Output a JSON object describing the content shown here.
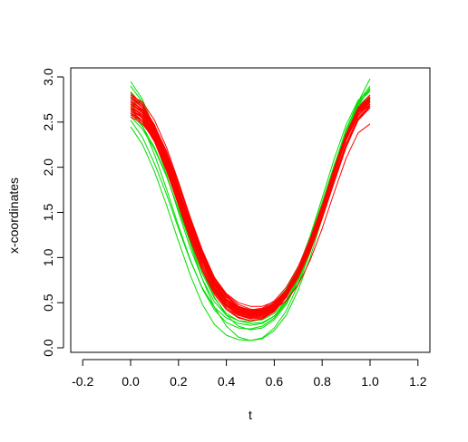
{
  "chart_data": {
    "type": "line",
    "title": "",
    "xlabel": "t",
    "ylabel": "x-coordinates",
    "xlim": [
      -0.25,
      1.25
    ],
    "ylim": [
      -0.05,
      3.1
    ],
    "x_ticks": [
      -0.2,
      0.0,
      0.2,
      0.4,
      0.6,
      0.8,
      1.0,
      1.2
    ],
    "x_tick_labels": [
      "-0.2",
      "0.0",
      "0.2",
      "0.4",
      "0.6",
      "0.8",
      "1.0",
      "1.2"
    ],
    "y_ticks": [
      0.0,
      0.5,
      1.0,
      1.5,
      2.0,
      2.5,
      3.0
    ],
    "y_tick_labels": [
      "0.0",
      "0.5",
      "1.0",
      "1.5",
      "2.0",
      "2.5",
      "3.0"
    ],
    "grid": false,
    "legend": "none",
    "colors": {
      "green": "#00dd00",
      "red": "#ff0000"
    },
    "x": [
      0.0,
      0.05,
      0.1,
      0.15,
      0.2,
      0.25,
      0.3,
      0.35,
      0.4,
      0.45,
      0.5,
      0.55,
      0.6,
      0.65,
      0.7,
      0.75,
      0.8,
      0.85,
      0.9,
      0.95,
      1.0
    ],
    "series": [
      {
        "color": "#00dd00",
        "values": [
          2.95,
          2.75,
          2.42,
          2.02,
          1.58,
          1.15,
          0.76,
          0.45,
          0.24,
          0.12,
          0.08,
          0.11,
          0.22,
          0.41,
          0.7,
          1.06,
          1.47,
          1.92,
          2.35,
          2.72,
          2.98
        ]
      },
      {
        "color": "#00dd00",
        "values": [
          2.9,
          2.72,
          2.41,
          2.03,
          1.62,
          1.21,
          0.85,
          0.56,
          0.36,
          0.24,
          0.2,
          0.22,
          0.31,
          0.48,
          0.74,
          1.08,
          1.48,
          1.92,
          2.34,
          2.68,
          2.88
        ]
      },
      {
        "color": "#00dd00",
        "values": [
          2.84,
          2.68,
          2.4,
          2.04,
          1.64,
          1.25,
          0.9,
          0.62,
          0.44,
          0.34,
          0.3,
          0.31,
          0.38,
          0.53,
          0.77,
          1.1,
          1.5,
          1.94,
          2.36,
          2.7,
          2.86
        ]
      },
      {
        "color": "#00dd00",
        "values": [
          2.6,
          2.45,
          2.22,
          1.9,
          1.53,
          1.16,
          0.82,
          0.55,
          0.38,
          0.3,
          0.27,
          0.28,
          0.35,
          0.5,
          0.74,
          1.08,
          1.49,
          1.94,
          2.36,
          2.68,
          2.8
        ]
      },
      {
        "color": "#00dd00",
        "values": [
          2.52,
          2.33,
          2.04,
          1.7,
          1.32,
          0.96,
          0.66,
          0.45,
          0.33,
          0.27,
          0.25,
          0.27,
          0.35,
          0.52,
          0.78,
          1.14,
          1.56,
          2.01,
          2.42,
          2.72,
          2.84
        ]
      },
      {
        "color": "#00dd00",
        "values": [
          2.45,
          2.25,
          1.95,
          1.58,
          1.18,
          0.8,
          0.48,
          0.26,
          0.14,
          0.09,
          0.08,
          0.1,
          0.19,
          0.36,
          0.64,
          1.0,
          1.44,
          1.9,
          2.32,
          2.62,
          2.75
        ]
      },
      {
        "color": "#00dd00",
        "values": [
          2.7,
          2.55,
          2.3,
          1.97,
          1.6,
          1.23,
          0.9,
          0.65,
          0.49,
          0.42,
          0.4,
          0.42,
          0.5,
          0.65,
          0.89,
          1.22,
          1.61,
          2.02,
          2.4,
          2.66,
          2.74
        ]
      },
      {
        "color": "#00dd00",
        "values": [
          2.78,
          2.6,
          2.3,
          1.92,
          1.5,
          1.1,
          0.76,
          0.51,
          0.36,
          0.3,
          0.29,
          0.32,
          0.42,
          0.6,
          0.88,
          1.24,
          1.66,
          2.09,
          2.47,
          2.74,
          2.86
        ]
      },
      {
        "color": "#00dd00",
        "values": [
          2.66,
          2.46,
          2.14,
          1.76,
          1.35,
          0.97,
          0.65,
          0.42,
          0.28,
          0.22,
          0.21,
          0.24,
          0.33,
          0.5,
          0.77,
          1.13,
          1.55,
          2.0,
          2.41,
          2.72,
          2.9
        ]
      },
      {
        "color": "#00dd00",
        "values": [
          2.56,
          2.42,
          2.2,
          1.9,
          1.54,
          1.18,
          0.86,
          0.61,
          0.46,
          0.39,
          0.37,
          0.39,
          0.47,
          0.62,
          0.85,
          1.17,
          1.56,
          1.98,
          2.37,
          2.66,
          2.8
        ]
      },
      {
        "color": "#ff0000",
        "values": [
          2.62,
          2.52,
          2.3,
          1.98,
          1.6,
          1.23,
          0.9,
          0.64,
          0.46,
          0.37,
          0.34,
          0.36,
          0.43,
          0.58,
          0.82,
          1.14,
          1.52,
          1.94,
          2.32,
          2.6,
          2.72
        ]
      },
      {
        "color": "#ff0000",
        "values": [
          2.7,
          2.6,
          2.38,
          2.06,
          1.68,
          1.3,
          0.96,
          0.7,
          0.52,
          0.43,
          0.4,
          0.42,
          0.49,
          0.64,
          0.87,
          1.18,
          1.56,
          1.97,
          2.35,
          2.63,
          2.76
        ]
      },
      {
        "color": "#ff0000",
        "values": [
          2.78,
          2.68,
          2.47,
          2.15,
          1.77,
          1.38,
          1.03,
          0.74,
          0.54,
          0.42,
          0.37,
          0.38,
          0.45,
          0.6,
          0.83,
          1.15,
          1.54,
          1.96,
          2.35,
          2.64,
          2.78
        ]
      },
      {
        "color": "#ff0000",
        "values": [
          2.66,
          2.58,
          2.4,
          2.12,
          1.76,
          1.39,
          1.05,
          0.77,
          0.57,
          0.46,
          0.41,
          0.42,
          0.48,
          0.62,
          0.84,
          1.14,
          1.51,
          1.92,
          2.3,
          2.58,
          2.7
        ]
      },
      {
        "color": "#ff0000",
        "values": [
          2.74,
          2.62,
          2.38,
          2.04,
          1.64,
          1.25,
          0.9,
          0.63,
          0.44,
          0.34,
          0.3,
          0.32,
          0.4,
          0.56,
          0.8,
          1.13,
          1.52,
          1.95,
          2.34,
          2.63,
          2.76
        ]
      },
      {
        "color": "#ff0000",
        "values": [
          2.58,
          2.5,
          2.32,
          2.03,
          1.68,
          1.32,
          0.99,
          0.72,
          0.54,
          0.44,
          0.4,
          0.41,
          0.47,
          0.6,
          0.81,
          1.1,
          1.46,
          1.86,
          2.24,
          2.52,
          2.66
        ]
      },
      {
        "color": "#ff0000",
        "values": [
          2.82,
          2.7,
          2.46,
          2.12,
          1.72,
          1.32,
          0.96,
          0.67,
          0.47,
          0.36,
          0.32,
          0.33,
          0.41,
          0.56,
          0.8,
          1.12,
          1.5,
          1.92,
          2.3,
          2.6,
          2.74
        ]
      },
      {
        "color": "#ff0000",
        "values": [
          2.64,
          2.55,
          2.35,
          2.05,
          1.68,
          1.3,
          0.96,
          0.69,
          0.5,
          0.4,
          0.36,
          0.37,
          0.44,
          0.58,
          0.8,
          1.1,
          1.47,
          1.88,
          2.26,
          2.55,
          2.68
        ]
      },
      {
        "color": "#ff0000",
        "values": [
          2.72,
          2.64,
          2.46,
          2.18,
          1.82,
          1.44,
          1.08,
          0.78,
          0.57,
          0.44,
          0.38,
          0.38,
          0.44,
          0.57,
          0.78,
          1.07,
          1.43,
          1.83,
          2.22,
          2.52,
          2.7
        ]
      },
      {
        "color": "#ff0000",
        "values": [
          2.68,
          2.56,
          2.33,
          2.0,
          1.62,
          1.24,
          0.9,
          0.64,
          0.47,
          0.38,
          0.35,
          0.37,
          0.45,
          0.6,
          0.84,
          1.16,
          1.55,
          1.97,
          2.36,
          2.64,
          2.76
        ]
      },
      {
        "color": "#ff0000",
        "values": [
          2.8,
          2.72,
          2.52,
          2.22,
          1.84,
          1.44,
          1.06,
          0.75,
          0.52,
          0.4,
          0.35,
          0.36,
          0.43,
          0.58,
          0.82,
          1.14,
          1.53,
          1.96,
          2.36,
          2.66,
          2.8
        ]
      },
      {
        "color": "#ff0000",
        "values": [
          2.6,
          2.5,
          2.28,
          1.96,
          1.58,
          1.2,
          0.87,
          0.61,
          0.44,
          0.36,
          0.33,
          0.35,
          0.42,
          0.57,
          0.8,
          1.11,
          1.48,
          1.88,
          2.25,
          2.53,
          2.66
        ]
      },
      {
        "color": "#ff0000",
        "values": [
          2.76,
          2.66,
          2.44,
          2.12,
          1.74,
          1.35,
          1.0,
          0.72,
          0.53,
          0.43,
          0.39,
          0.4,
          0.47,
          0.61,
          0.84,
          1.15,
          1.53,
          1.95,
          2.34,
          2.62,
          2.76
        ]
      },
      {
        "color": "#ff0000",
        "values": [
          2.7,
          2.62,
          2.44,
          2.16,
          1.8,
          1.42,
          1.07,
          0.78,
          0.57,
          0.45,
          0.4,
          0.4,
          0.46,
          0.59,
          0.8,
          1.09,
          1.45,
          1.85,
          2.24,
          2.53,
          2.68
        ]
      },
      {
        "color": "#ff0000",
        "values": [
          2.66,
          2.54,
          2.3,
          1.97,
          1.58,
          1.19,
          0.85,
          0.59,
          0.42,
          0.33,
          0.3,
          0.32,
          0.4,
          0.56,
          0.8,
          1.13,
          1.52,
          1.94,
          2.33,
          2.61,
          2.74
        ]
      },
      {
        "color": "#ff0000",
        "values": [
          2.74,
          2.64,
          2.42,
          2.1,
          1.72,
          1.34,
          0.99,
          0.72,
          0.54,
          0.45,
          0.42,
          0.44,
          0.52,
          0.67,
          0.9,
          1.21,
          1.58,
          1.98,
          2.35,
          2.62,
          2.74
        ]
      },
      {
        "color": "#ff0000",
        "values": [
          2.62,
          2.55,
          2.38,
          2.11,
          1.76,
          1.4,
          1.06,
          0.78,
          0.58,
          0.46,
          0.41,
          0.41,
          0.47,
          0.6,
          0.81,
          1.1,
          1.46,
          1.86,
          2.24,
          2.52,
          2.66
        ]
      },
      {
        "color": "#ff0000",
        "values": [
          2.78,
          2.66,
          2.42,
          2.08,
          1.68,
          1.28,
          0.93,
          0.66,
          0.48,
          0.39,
          0.36,
          0.38,
          0.46,
          0.61,
          0.85,
          1.17,
          1.56,
          1.98,
          2.37,
          2.65,
          2.78
        ]
      },
      {
        "color": "#ff0000",
        "values": [
          2.7,
          2.6,
          2.4,
          2.1,
          1.74,
          1.37,
          1.04,
          0.78,
          0.6,
          0.5,
          0.46,
          0.46,
          0.51,
          0.63,
          0.83,
          1.11,
          1.46,
          1.86,
          2.24,
          2.53,
          2.68
        ]
      },
      {
        "color": "#ff0000",
        "values": [
          2.64,
          2.56,
          2.36,
          2.06,
          1.7,
          1.32,
          0.98,
          0.7,
          0.5,
          0.38,
          0.33,
          0.34,
          0.41,
          0.56,
          0.8,
          1.12,
          1.5,
          1.92,
          2.31,
          2.6,
          2.73
        ]
      },
      {
        "color": "#ff0000",
        "values": [
          2.72,
          2.6,
          2.37,
          2.04,
          1.66,
          1.27,
          0.93,
          0.67,
          0.5,
          0.41,
          0.38,
          0.4,
          0.48,
          0.63,
          0.87,
          1.19,
          1.57,
          1.99,
          2.37,
          2.64,
          2.77
        ]
      },
      {
        "color": "#ff0000",
        "values": [
          2.56,
          2.48,
          2.3,
          2.02,
          1.68,
          1.34,
          1.02,
          0.77,
          0.59,
          0.48,
          0.43,
          0.41,
          0.43,
          0.52,
          0.7,
          0.97,
          1.32,
          1.72,
          2.1,
          2.38,
          2.48
        ]
      },
      {
        "color": "#ff0000",
        "values": [
          2.68,
          2.58,
          2.38,
          2.08,
          1.72,
          1.35,
          1.0,
          0.72,
          0.52,
          0.41,
          0.36,
          0.37,
          0.44,
          0.59,
          0.82,
          1.13,
          1.51,
          1.92,
          2.3,
          2.58,
          2.72
        ]
      },
      {
        "color": "#ff0000",
        "values": [
          2.8,
          2.68,
          2.45,
          2.12,
          1.73,
          1.34,
          0.99,
          0.71,
          0.52,
          0.42,
          0.38,
          0.39,
          0.46,
          0.61,
          0.84,
          1.16,
          1.55,
          1.97,
          2.36,
          2.64,
          2.78
        ]
      },
      {
        "color": "#ff0000",
        "values": [
          2.6,
          2.52,
          2.34,
          2.06,
          1.71,
          1.35,
          1.02,
          0.75,
          0.56,
          0.46,
          0.42,
          0.43,
          0.5,
          0.64,
          0.86,
          1.16,
          1.53,
          1.93,
          2.3,
          2.57,
          2.7
        ]
      },
      {
        "color": "#ff0000",
        "values": [
          2.74,
          2.63,
          2.41,
          2.09,
          1.71,
          1.33,
          0.98,
          0.71,
          0.52,
          0.42,
          0.38,
          0.4,
          0.48,
          0.63,
          0.87,
          1.18,
          1.56,
          1.97,
          2.35,
          2.63,
          2.76
        ]
      }
    ]
  }
}
